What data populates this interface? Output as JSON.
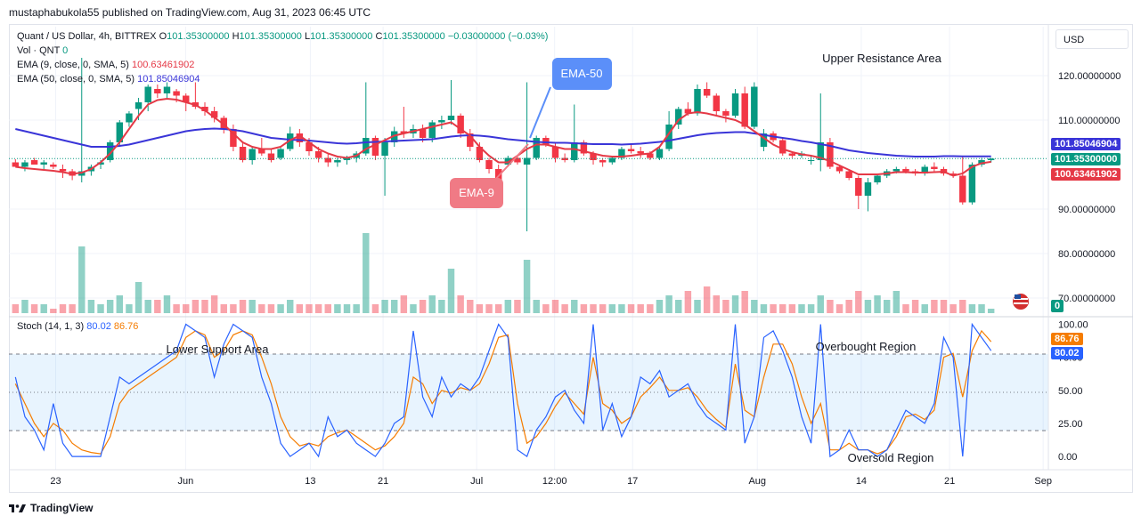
{
  "header": {
    "published_line": "mustaphabukola55 published on TradingView.com, Aug 31, 2023 06:45 UTC"
  },
  "legend": {
    "symbol": "Quant / US Dollar, 4h, BITTREX",
    "o_label": "O",
    "o_value": "101.35300000",
    "h_label": "H",
    "h_value": "101.35300000",
    "l_label": "L",
    "l_value": "101.35300000",
    "c_label": "C",
    "c_value": "101.35300000",
    "change": "−0.03000000 (−0.03%)",
    "vol_label": "Vol · QNT",
    "vol_value": "0",
    "ema9_label": "EMA (9, close, 0, SMA, 5)",
    "ema9_value": "100.63461902",
    "ema50_label": "EMA (50, close, 0, SMA, 5)",
    "ema50_value": "101.85046904",
    "stoch_label": "Stoch (14, 1, 3)",
    "stoch_k": "80.02",
    "stoch_d": "86.76"
  },
  "currency_button": "USD",
  "annotations": {
    "upper_resistance": "Upper Resistance Area",
    "lower_support": "Lower Support Area",
    "overbought": "Overbought Region",
    "oversold": "Oversold Region",
    "ema50_callout": "EMA-50",
    "ema9_callout": "EMA-9"
  },
  "price_tags": {
    "ema50": "101.85046904",
    "close": "101.35300000",
    "ema9": "100.63461902",
    "volume": "0",
    "stoch_d": "86.76",
    "stoch_k": "80.02"
  },
  "footer": {
    "brand": "TradingView"
  },
  "colors": {
    "up": "#089981",
    "down": "#f23645",
    "ema9": "#e53946",
    "ema50": "#3a35d8",
    "stoch_k": "#2962ff",
    "stoch_d": "#f57c00",
    "callout_blue": "#5b8ff9",
    "callout_red": "#f07a85"
  },
  "chart_data": [
    {
      "type": "candlestick",
      "title": "Quant / US Dollar, 4h, BITTREX",
      "price_axis_ticks": [
        "120.00000000",
        "110.00000000",
        "90.00000000",
        "80.00000000",
        "70.00000000"
      ],
      "ylim": [
        67,
        129
      ],
      "time_axis_ticks": [
        "23",
        "Jun",
        "13",
        "21",
        "Jul",
        "12:00",
        "17",
        "Aug",
        "14",
        "21",
        "Sep"
      ],
      "candles_approx": [
        [
          100.5,
          101.2,
          99.5,
          99.5
        ],
        [
          99.5,
          101.0,
          98.5,
          100.5
        ],
        [
          101.0,
          101.5,
          100.0,
          100.0
        ],
        [
          100.0,
          101.0,
          99.0,
          100.5
        ],
        [
          100.0,
          100.5,
          99.0,
          99.5
        ],
        [
          99.0,
          100.0,
          97.0,
          98.5
        ],
        [
          98.5,
          99.0,
          96.5,
          97.5
        ],
        [
          97.5,
          124.0,
          96.0,
          98.5
        ],
        [
          98.5,
          100.0,
          97.5,
          99.5
        ],
        [
          100.0,
          101.0,
          99.0,
          100.5
        ],
        [
          101.0,
          105.5,
          100.5,
          105.0
        ],
        [
          105.0,
          110.0,
          104.0,
          109.5
        ],
        [
          109.5,
          112.0,
          108.5,
          111.5
        ],
        [
          112.5,
          115.0,
          110.0,
          114.0
        ],
        [
          114.0,
          118.0,
          112.0,
          117.5
        ],
        [
          117.0,
          118.0,
          115.0,
          116.0
        ],
        [
          116.0,
          118.5,
          115.0,
          117.5
        ],
        [
          116.5,
          117.0,
          114.0,
          115.5
        ],
        [
          115.5,
          116.0,
          112.0,
          114.0
        ],
        [
          114.0,
          118.5,
          112.5,
          113.0
        ],
        [
          113.0,
          114.0,
          111.0,
          112.0
        ],
        [
          112.0,
          113.0,
          109.5,
          110.5
        ],
        [
          110.5,
          111.0,
          107.0,
          108.0
        ],
        [
          108.0,
          109.0,
          103.0,
          104.0
        ],
        [
          104.0,
          105.0,
          100.5,
          101.0
        ],
        [
          101.0,
          104.0,
          100.0,
          103.5
        ],
        [
          103.5,
          106.0,
          102.0,
          102.5
        ],
        [
          102.5,
          103.5,
          100.5,
          101.0
        ],
        [
          101.5,
          104.0,
          101.0,
          103.5
        ],
        [
          103.5,
          108.5,
          103.0,
          107.0
        ],
        [
          107.0,
          108.0,
          104.0,
          105.0
        ],
        [
          105.0,
          106.0,
          102.0,
          103.0
        ],
        [
          103.0,
          104.0,
          100.5,
          101.5
        ],
        [
          101.5,
          102.5,
          99.5,
          100.5
        ],
        [
          100.5,
          101.5,
          99.5,
          101.0
        ],
        [
          101.0,
          102.0,
          100.0,
          101.5
        ],
        [
          101.5,
          103.0,
          100.5,
          102.5
        ],
        [
          102.5,
          118.5,
          102.0,
          106.0
        ],
        [
          106.0,
          106.5,
          101.0,
          102.0
        ],
        [
          102.0,
          106.0,
          93.0,
          105.0
        ],
        [
          105.0,
          108.5,
          104.0,
          107.5
        ],
        [
          107.5,
          113.0,
          106.0,
          107.0
        ],
        [
          107.0,
          109.0,
          106.0,
          108.0
        ],
        [
          108.0,
          109.0,
          105.0,
          106.0
        ],
        [
          106.0,
          110.0,
          105.0,
          109.5
        ],
        [
          109.5,
          111.0,
          108.0,
          110.0
        ],
        [
          110.0,
          119.0,
          109.0,
          111.0
        ],
        [
          111.0,
          111.5,
          106.0,
          107.0
        ],
        [
          107.0,
          108.0,
          103.0,
          104.0
        ],
        [
          104.0,
          105.0,
          100.5,
          101.0
        ],
        [
          101.0,
          101.5,
          98.0,
          99.0
        ],
        [
          99.0,
          100.0,
          94.0,
          95.0
        ],
        [
          100.0,
          102.0,
          99.5,
          101.5
        ],
        [
          101.5,
          102.0,
          100.0,
          100.5
        ],
        [
          100.0,
          118.5,
          85.0,
          101.5
        ],
        [
          101.5,
          106.5,
          101.0,
          106.0
        ],
        [
          106.0,
          106.5,
          104.0,
          104.5
        ],
        [
          104.0,
          105.0,
          100.5,
          101.5
        ],
        [
          101.5,
          102.5,
          100.5,
          101.0
        ],
        [
          101.0,
          113.5,
          100.5,
          105.0
        ],
        [
          105.0,
          105.5,
          102.0,
          102.5
        ],
        [
          102.5,
          103.0,
          100.0,
          101.0
        ],
        [
          101.0,
          101.5,
          99.5,
          100.5
        ],
        [
          100.5,
          102.0,
          100.0,
          101.5
        ],
        [
          101.5,
          104.0,
          101.0,
          103.5
        ],
        [
          103.5,
          104.5,
          102.5,
          103.0
        ],
        [
          103.0,
          104.0,
          101.5,
          102.5
        ],
        [
          102.5,
          103.0,
          101.0,
          101.5
        ],
        [
          101.5,
          104.0,
          101.0,
          103.5
        ],
        [
          103.5,
          112.0,
          103.0,
          109.0
        ],
        [
          109.0,
          113.0,
          108.0,
          112.5
        ],
        [
          112.5,
          114.0,
          111.0,
          111.5
        ],
        [
          111.5,
          118.0,
          111.0,
          117.0
        ],
        [
          117.0,
          118.5,
          115.0,
          115.5
        ],
        [
          115.5,
          116.0,
          111.0,
          112.0
        ],
        [
          112.0,
          112.5,
          109.5,
          111.0
        ],
        [
          111.0,
          117.0,
          110.5,
          116.0
        ],
        [
          116.0,
          117.5,
          108.0,
          108.5
        ],
        [
          108.5,
          118.5,
          108.0,
          117.5
        ],
        [
          104.0,
          108.0,
          103.0,
          107.0
        ],
        [
          107.0,
          107.5,
          105.0,
          105.5
        ],
        [
          105.5,
          106.0,
          102.0,
          102.5
        ],
        [
          102.5,
          103.0,
          101.5,
          102.0
        ],
        [
          102.0,
          103.0,
          101.5,
          102.5
        ],
        [
          101.0,
          102.0,
          100.0,
          101.0
        ],
        [
          101.0,
          116.0,
          98.5,
          105.0
        ],
        [
          105.0,
          106.0,
          99.0,
          99.5
        ],
        [
          99.5,
          100.0,
          98.0,
          98.5
        ],
        [
          98.5,
          99.0,
          96.5,
          97.0
        ],
        [
          97.0,
          97.5,
          90.0,
          93.0
        ],
        [
          93.0,
          97.0,
          89.5,
          96.0
        ],
        [
          96.0,
          98.0,
          95.5,
          97.5
        ],
        [
          97.5,
          99.0,
          97.0,
          98.5
        ],
        [
          98.5,
          99.5,
          98.0,
          99.0
        ],
        [
          99.0,
          99.5,
          98.0,
          98.5
        ],
        [
          98.5,
          99.0,
          97.5,
          98.0
        ],
        [
          98.0,
          100.0,
          97.5,
          99.5
        ],
        [
          99.5,
          100.5,
          98.5,
          99.0
        ],
        [
          99.0,
          99.5,
          97.5,
          98.0
        ],
        [
          98.0,
          98.5,
          97.0,
          97.5
        ],
        [
          97.5,
          102.0,
          91.0,
          91.5
        ],
        [
          91.5,
          100.5,
          91.0,
          100.0
        ],
        [
          100.0,
          101.5,
          99.5,
          101.0
        ],
        [
          101.0,
          101.5,
          100.5,
          101.35
        ]
      ],
      "ema9_approx": [
        99.5,
        99.2,
        99.0,
        98.8,
        98.6,
        98.3,
        97.9,
        98.2,
        99.0,
        100.5,
        102.5,
        105.0,
        108.0,
        111.0,
        113.5,
        114.5,
        114.8,
        114.6,
        114.0,
        113.4,
        112.2,
        110.6,
        109.0,
        107.0,
        105.0,
        104.0,
        103.5,
        103.5,
        104.0,
        105.5,
        106.5,
        105.0,
        103.5,
        102.5,
        101.8,
        101.5,
        102.0,
        103.5,
        104.5,
        105.5,
        106.5,
        107.0,
        107.5,
        108.0,
        108.5,
        109.0,
        109.5,
        108.0,
        106.5,
        104.0,
        102.0,
        100.5,
        100.5,
        102.0,
        103.5,
        104.5,
        104.5,
        104.0,
        103.5,
        103.5,
        103.0,
        102.5,
        102.0,
        101.8,
        101.8,
        102.0,
        102.3,
        102.5,
        104.0,
        107.0,
        110.0,
        111.5,
        111.8,
        111.5,
        111.0,
        110.5,
        110.0,
        109.0,
        107.5,
        106.0,
        104.5,
        103.5,
        102.8,
        102.3,
        102.0,
        101.5,
        100.8,
        99.8,
        98.8,
        97.8,
        97.8,
        97.8,
        98.0,
        98.3,
        98.3,
        98.2,
        98.2,
        98.3,
        98.4,
        97.5,
        98.0,
        99.5,
        100.3,
        100.63
      ],
      "ema50_approx": [
        108.0,
        107.5,
        107.0,
        106.5,
        106.0,
        105.5,
        105.0,
        104.5,
        104.0,
        104.0,
        104.0,
        104.2,
        104.5,
        105.0,
        105.5,
        106.0,
        106.5,
        107.0,
        107.5,
        107.8,
        108.0,
        108.1,
        108.0,
        107.8,
        107.5,
        107.0,
        106.5,
        106.0,
        105.8,
        105.6,
        105.5,
        105.4,
        105.2,
        105.0,
        104.8,
        104.7,
        104.8,
        105.0,
        105.1,
        105.2,
        105.3,
        105.4,
        105.5,
        105.6,
        105.7,
        106.0,
        106.3,
        106.5,
        106.6,
        106.5,
        106.3,
        106.0,
        105.7,
        105.5,
        105.3,
        105.1,
        105.0,
        104.9,
        104.9,
        104.8,
        104.7,
        104.6,
        104.6,
        104.6,
        104.5,
        104.6,
        104.7,
        104.9,
        105.1,
        105.4,
        105.8,
        106.2,
        106.6,
        106.9,
        107.1,
        107.2,
        107.3,
        107.3,
        107.0,
        106.7,
        106.3,
        106.0,
        105.7,
        105.3,
        105.0,
        104.6,
        104.2,
        103.7,
        103.2,
        102.9,
        102.6,
        102.4,
        102.2,
        102.0,
        101.9,
        101.8,
        101.8,
        101.8,
        101.9,
        101.9,
        101.85,
        101.85,
        101.85,
        101.85
      ]
    },
    {
      "type": "bar",
      "title": "Vol · QNT",
      "values_approx": [
        2,
        3,
        2,
        2,
        1,
        2,
        2,
        15,
        3,
        2,
        3,
        4,
        2,
        7,
        3,
        3,
        4,
        2,
        2,
        3,
        3,
        4,
        2,
        2,
        3,
        3,
        2,
        2,
        2,
        3,
        2,
        2,
        2,
        2,
        2,
        2,
        2,
        18,
        2,
        3,
        3,
        4,
        2,
        3,
        4,
        3,
        10,
        4,
        3,
        2,
        2,
        2,
        3,
        3,
        12,
        3,
        2,
        3,
        2,
        3,
        2,
        2,
        2,
        2,
        2,
        2,
        2,
        2,
        3,
        4,
        3,
        5,
        3,
        6,
        4,
        3,
        4,
        5,
        3,
        2,
        2,
        2,
        2,
        2,
        2,
        4,
        3,
        2,
        3,
        5,
        3,
        4,
        3,
        5,
        2,
        3,
        2,
        3,
        3,
        2,
        3,
        2,
        2,
        1
      ],
      "current_value": "0"
    },
    {
      "type": "line",
      "title": "Stoch (14, 1, 3)",
      "y_ticks": [
        "100.00",
        "75.00",
        "50.00",
        "25.00",
        "0.00"
      ],
      "ylim": [
        -8,
        103
      ],
      "reference_levels": [
        80,
        50,
        20
      ],
      "series": [
        {
          "name": "80.02",
          "values_approx": [
            60,
            30,
            20,
            5,
            40,
            10,
            0,
            0,
            0,
            0,
            30,
            60,
            55,
            60,
            65,
            70,
            75,
            80,
            100,
            95,
            90,
            60,
            85,
            100,
            95,
            90,
            60,
            40,
            10,
            0,
            5,
            10,
            0,
            30,
            15,
            20,
            10,
            5,
            0,
            10,
            25,
            30,
            95,
            45,
            30,
            60,
            45,
            55,
            50,
            60,
            80,
            100,
            90,
            5,
            0,
            20,
            30,
            45,
            50,
            35,
            25,
            100,
            20,
            40,
            15,
            30,
            60,
            55,
            65,
            45,
            50,
            55,
            40,
            30,
            25,
            20,
            100,
            10,
            30,
            90,
            95,
            80,
            60,
            30,
            10,
            100,
            0,
            5,
            20,
            5,
            5,
            0,
            5,
            20,
            35,
            30,
            25,
            40,
            90,
            75,
            0,
            100,
            90,
            80
          ]
        },
        {
          "name": "86.76",
          "values_approx": [
            55,
            40,
            25,
            15,
            25,
            20,
            10,
            5,
            3,
            2,
            15,
            40,
            50,
            55,
            60,
            65,
            70,
            75,
            90,
            95,
            92,
            75,
            80,
            92,
            95,
            92,
            75,
            55,
            30,
            15,
            8,
            10,
            8,
            15,
            18,
            20,
            15,
            10,
            5,
            8,
            15,
            25,
            60,
            55,
            40,
            50,
            48,
            52,
            50,
            55,
            70,
            90,
            92,
            40,
            10,
            15,
            25,
            38,
            48,
            40,
            32,
            75,
            40,
            35,
            25,
            30,
            45,
            52,
            60,
            50,
            50,
            52,
            45,
            35,
            28,
            22,
            70,
            35,
            30,
            60,
            85,
            85,
            70,
            45,
            25,
            40,
            5,
            5,
            10,
            5,
            5,
            2,
            5,
            15,
            30,
            32,
            28,
            35,
            75,
            78,
            45,
            80,
            95,
            86.76
          ]
        }
      ]
    }
  ]
}
